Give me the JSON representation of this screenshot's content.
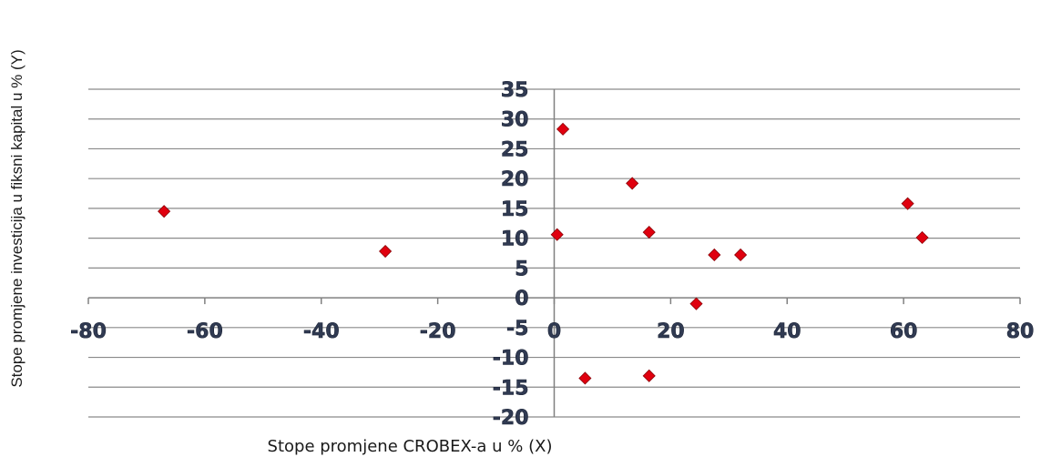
{
  "chart_data": {
    "type": "scatter",
    "title": "",
    "xlabel": "Stope promjene CROBEX-a u % (X)",
    "ylabel": "Stope promjene investicija u fiksni kapital u % (Y)",
    "xlim": [
      -80,
      80
    ],
    "ylim": [
      -20,
      35
    ],
    "x_ticks": [
      -80,
      -60,
      -40,
      -20,
      0,
      20,
      40,
      60,
      80
    ],
    "y_ticks": [
      -20,
      -15,
      -10,
      -5,
      0,
      5,
      10,
      15,
      20,
      25,
      30,
      35
    ],
    "grid": "horizontal",
    "marker_color": "#e0000f",
    "points": [
      {
        "x": -67,
        "y": 14.5
      },
      {
        "x": -29,
        "y": 7.8
      },
      {
        "x": 0.5,
        "y": 10.6
      },
      {
        "x": 1.5,
        "y": 28.3
      },
      {
        "x": 5.3,
        "y": -13.5
      },
      {
        "x": 13.4,
        "y": 19.2
      },
      {
        "x": 16.3,
        "y": 11.0
      },
      {
        "x": 16.3,
        "y": -13.1
      },
      {
        "x": 24.4,
        "y": -1.0
      },
      {
        "x": 27.5,
        "y": 7.2
      },
      {
        "x": 32.0,
        "y": 7.2
      },
      {
        "x": 60.7,
        "y": 15.8
      },
      {
        "x": 63.2,
        "y": 10.1
      }
    ]
  }
}
